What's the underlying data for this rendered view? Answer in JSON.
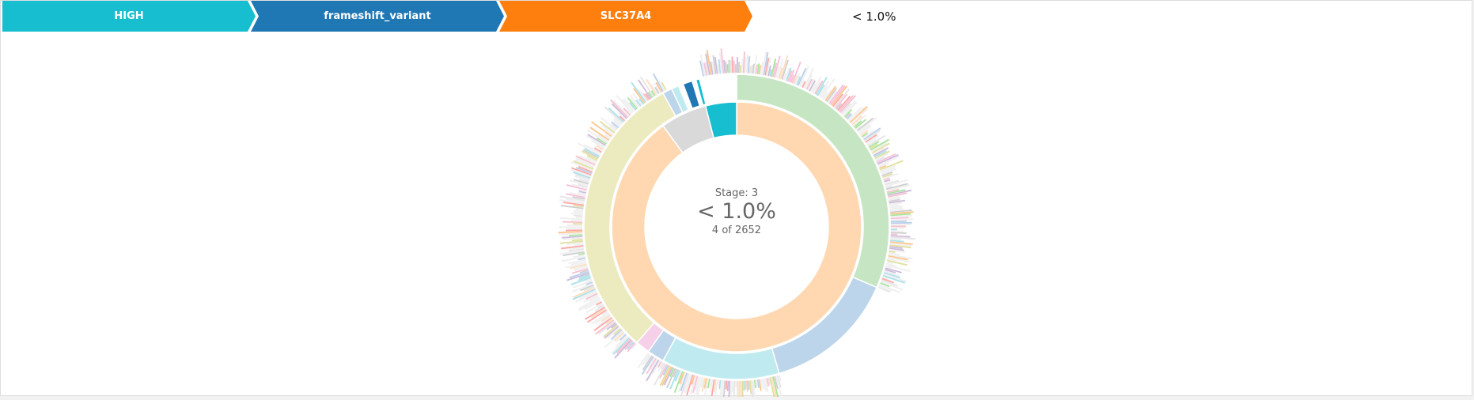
{
  "breadcrumb": [
    {
      "label": "HIGH",
      "color": "#17becf"
    },
    {
      "label": "frameshift_variant",
      "color": "#1f77b4"
    },
    {
      "label": "SLC37A4",
      "color": "#ff7f0e"
    }
  ],
  "percentage_label": "< 1.0%",
  "center": {
    "stage": "Stage: 3",
    "percent": "< 1.0%",
    "count": "4 of 2652"
  },
  "chart_data": {
    "type": "sunburst",
    "total": 2652,
    "selected_count": 4,
    "selected_path": [
      "HIGH",
      "frameshift_variant",
      "SLC37A4"
    ],
    "rings": [
      {
        "level": 1,
        "segments": [
          {
            "share": 0.9,
            "color": "#ffd8b1"
          },
          {
            "share": 0.06,
            "color": "#d9d9d9"
          },
          {
            "share": 0.04,
            "color": "#17becf"
          }
        ]
      },
      {
        "level": 2,
        "segments": [
          {
            "share": 0.315,
            "color": "#c6e6c3"
          },
          {
            "share": 0.14,
            "color": "#bcd5ea"
          },
          {
            "share": 0.125,
            "color": "#bfebf0"
          },
          {
            "share": 0.018,
            "color": "#bcd5ea"
          },
          {
            "share": 0.015,
            "color": "#f6d0e8"
          },
          {
            "share": 0.307,
            "color": "#ecebbf"
          },
          {
            "share": 0.01,
            "color": "#bcd5ea"
          },
          {
            "share": 0.008,
            "color": "#bfebf0"
          },
          {
            "share": 0.005,
            "color": "#ffffff"
          },
          {
            "share": 0.01,
            "color": "#1f77b4"
          },
          {
            "share": 0.004,
            "color": "#ffffff"
          },
          {
            "share": 0.004,
            "color": "#17becf"
          },
          {
            "share": 0.004,
            "color": "#ffffff"
          },
          {
            "share": 0.035,
            "color": "#ffffff"
          }
        ]
      }
    ],
    "outer_palette": [
      "#f4b6c2",
      "#c5b0d5",
      "#aec7e8",
      "#98df8a",
      "#ffbb78",
      "#f7b6d2",
      "#c7c7c7",
      "#dbdb8d",
      "#9edae5",
      "#ff9896",
      "#ffd8b1",
      "#e0e0e0"
    ]
  }
}
